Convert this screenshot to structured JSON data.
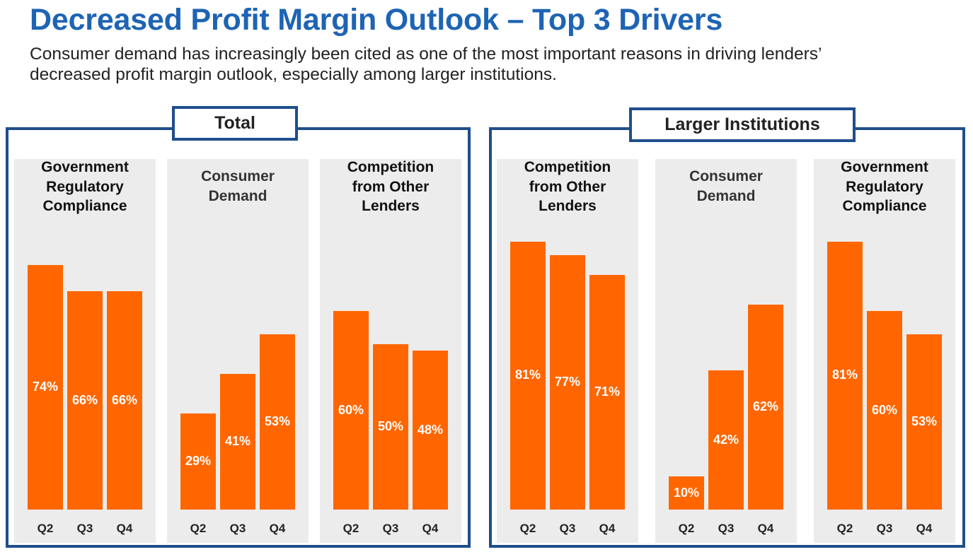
{
  "header": {
    "title": "Decreased Profit Margin Outlook – Top 3 Drivers",
    "subtitle_line1": "Consumer demand has increasingly been cited as one of the most important reasons in driving lenders’",
    "subtitle_line2": "decreased profit margin outlook, especially among larger institutions."
  },
  "colors": {
    "title": "#1E64B4",
    "bar": "#FF6600",
    "frame": "#1F4E8C",
    "panel_bg": "#ECECEC"
  },
  "chart_data": [
    {
      "type": "bar",
      "title": "Total",
      "panels": [
        {
          "title_lines": [
            "Government",
            "Regulatory",
            "Compliance"
          ],
          "categories": [
            "Q2",
            "Q3",
            "Q4"
          ],
          "values": [
            74,
            66,
            66
          ],
          "labels": [
            "74%",
            "66%",
            "66%"
          ]
        },
        {
          "title_lines": [
            "Consumer",
            "Demand"
          ],
          "categories": [
            "Q2",
            "Q3",
            "Q4"
          ],
          "values": [
            29,
            41,
            53
          ],
          "labels": [
            "29%",
            "41%",
            "53%"
          ]
        },
        {
          "title_lines": [
            "Competition",
            "from Other",
            "Lenders"
          ],
          "categories": [
            "Q2",
            "Q3",
            "Q4"
          ],
          "values": [
            60,
            50,
            48
          ],
          "labels": [
            "60%",
            "50%",
            "48%"
          ]
        }
      ],
      "unit": "%",
      "ylim": [
        0,
        100
      ],
      "grid": false
    },
    {
      "type": "bar",
      "title": "Larger Institutions",
      "panels": [
        {
          "title_lines": [
            "Competition",
            "from Other",
            "Lenders"
          ],
          "categories": [
            "Q2",
            "Q3",
            "Q4"
          ],
          "values": [
            81,
            77,
            71
          ],
          "labels": [
            "81%",
            "77%",
            "71%"
          ]
        },
        {
          "title_lines": [
            "Consumer",
            "Demand"
          ],
          "categories": [
            "Q2",
            "Q3",
            "Q4"
          ],
          "values": [
            10,
            42,
            62
          ],
          "labels": [
            "10%",
            "42%",
            "62%"
          ]
        },
        {
          "title_lines": [
            "Government",
            "Regulatory",
            "Compliance"
          ],
          "categories": [
            "Q2",
            "Q3",
            "Q4"
          ],
          "values": [
            81,
            60,
            53
          ],
          "labels": [
            "81%",
            "60%",
            "53%"
          ]
        }
      ],
      "unit": "%",
      "ylim": [
        0,
        100
      ],
      "grid": false
    }
  ]
}
